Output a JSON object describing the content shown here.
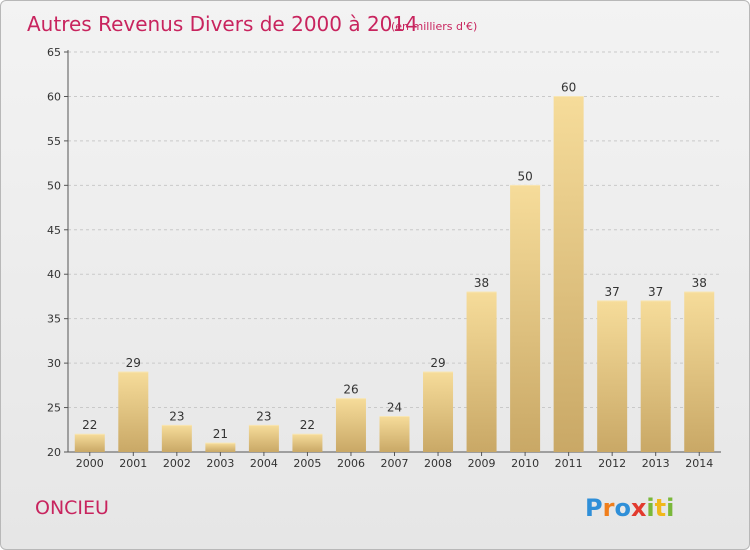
{
  "chart_data": {
    "type": "bar",
    "title": "Autres Revenus Divers de 2000 à 2014",
    "subtitle": "(en milliers d'€)",
    "categories": [
      "2000",
      "2001",
      "2002",
      "2003",
      "2004",
      "2005",
      "2006",
      "2007",
      "2008",
      "2009",
      "2010",
      "2011",
      "2012",
      "2013",
      "2014"
    ],
    "values": [
      22,
      29,
      23,
      21,
      23,
      22,
      26,
      24,
      29,
      38,
      50,
      60,
      37,
      37,
      38
    ],
    "ylim": [
      20,
      65
    ],
    "yticks": [
      20,
      25,
      30,
      35,
      40,
      45,
      50,
      55,
      60,
      65
    ],
    "grid": "horizontal dashed",
    "bar_color": "#e8c77a"
  },
  "footer": {
    "place": "ONCIEU",
    "logo_letters": [
      {
        "ch": "P",
        "color": "#2f8fd8"
      },
      {
        "ch": "r",
        "color": "#f07e1b"
      },
      {
        "ch": "o",
        "color": "#2f8fd8"
      },
      {
        "ch": "x",
        "color": "#e23a2e"
      },
      {
        "ch": "i",
        "color": "#7ab83a"
      },
      {
        "ch": "t",
        "color": "#f0b81b"
      },
      {
        "ch": "i",
        "color": "#7ab83a"
      }
    ]
  }
}
